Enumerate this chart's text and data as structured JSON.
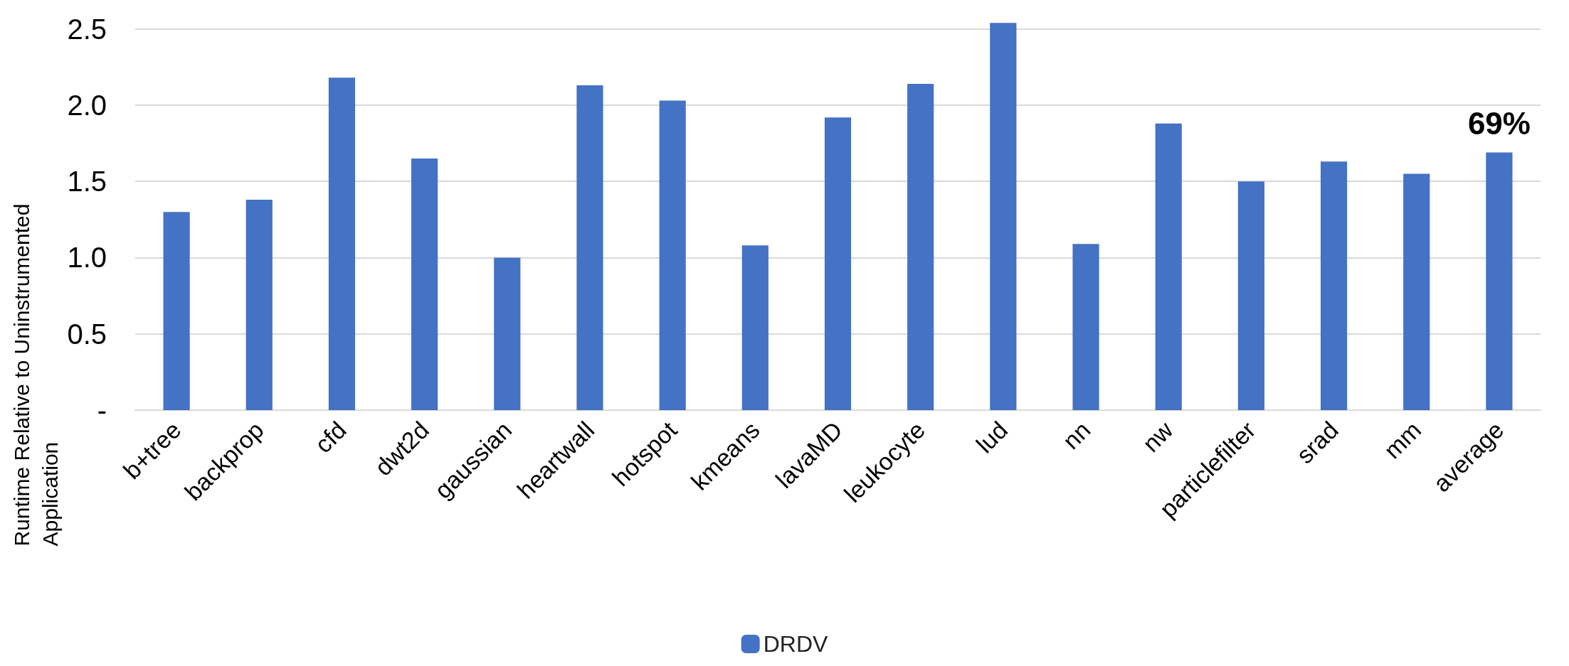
{
  "chart_data": {
    "type": "bar",
    "ylabel": "Runtime Relative to Uninstrumented Application",
    "categories": [
      "b+tree",
      "backprop",
      "cfd",
      "dwt2d",
      "gaussian",
      "heartwall",
      "hotspot",
      "kmeans",
      "lavaMD",
      "leukocyte",
      "lud",
      "nn",
      "nw",
      "particlefilter",
      "srad",
      "mm",
      "average"
    ],
    "series": [
      {
        "name": "DRDV",
        "color": "#4472c4",
        "values": [
          1.3,
          1.38,
          2.18,
          1.65,
          1.0,
          2.13,
          2.03,
          1.08,
          1.92,
          2.14,
          2.54,
          1.09,
          1.88,
          1.5,
          1.63,
          1.55,
          1.69
        ]
      }
    ],
    "ylim": [
      0,
      2.55
    ],
    "yticks": [
      {
        "value": 0,
        "label": "-"
      },
      0.5,
      {
        "value": 1,
        "label": "1.0"
      },
      1.5,
      {
        "value": 2,
        "label": "2.0"
      },
      2.5
    ],
    "annotations": [
      {
        "text": "69%",
        "x": "average",
        "y": 1.69
      }
    ],
    "grid": "y",
    "legend": "bottom"
  }
}
